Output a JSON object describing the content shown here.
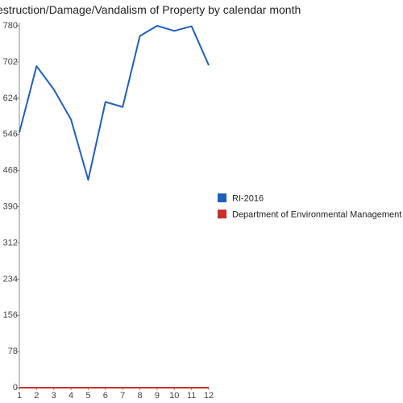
{
  "chart_data": {
    "type": "line",
    "title": "Destruction/Damage/Vandalism of Property by calendar month",
    "x": [
      "1",
      "2",
      "3",
      "4",
      "5",
      "6",
      "7",
      "8",
      "9",
      "10",
      "11",
      "12"
    ],
    "yticks": [
      "0",
      "78",
      "156",
      "234",
      "312",
      "390",
      "468",
      "546",
      "624",
      "702",
      "780"
    ],
    "ylim": [
      0,
      780
    ],
    "grid": false,
    "legend_position": "right",
    "series": [
      {
        "name": "RI-2016",
        "color": "#1f5fbf",
        "values": [
          550,
          693,
          643,
          578,
          448,
          616,
          605,
          758,
          780,
          769,
          779,
          695
        ]
      },
      {
        "name": "Department of Environmental Management",
        "color": "#c9302c",
        "values": [
          0,
          0,
          0,
          0,
          0,
          0,
          0,
          0,
          0,
          0,
          0,
          0
        ]
      }
    ]
  }
}
